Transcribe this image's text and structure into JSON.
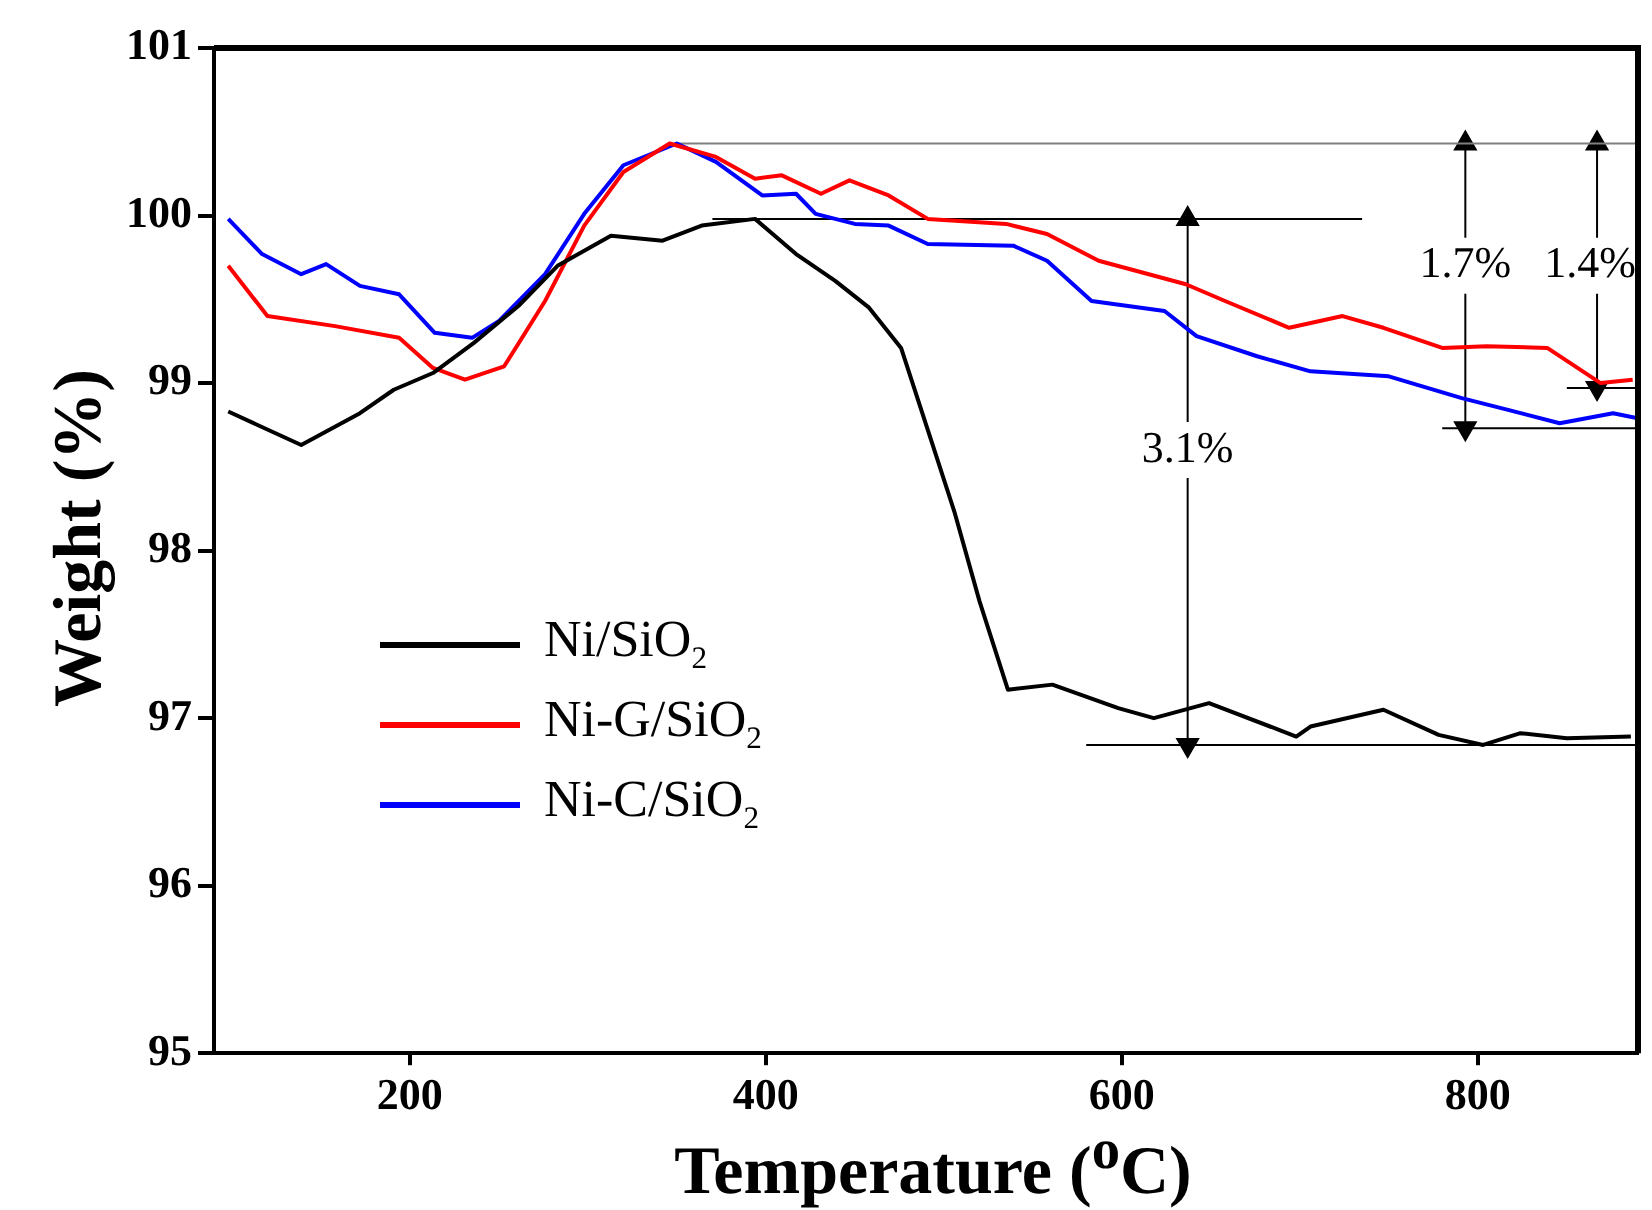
{
  "chart_data": {
    "type": "line",
    "xlabel": "Temperature ($^{o}$C)",
    "ylabel": "Weight (%)",
    "xlim": [
      90,
      890
    ],
    "xticks": [
      200,
      400,
      600,
      800
    ],
    "ylim": [
      95,
      101
    ],
    "yticks": [
      95,
      96,
      97,
      98,
      99,
      100,
      101
    ],
    "grid": false,
    "legend": "left",
    "line_style": "solid",
    "marker": "none",
    "series": [
      {
        "name": "Ni/SiO$_{2}$",
        "color": "#000000",
        "x": [
          98,
          139,
          172,
          191,
          213,
          236,
          261,
          283,
          313,
          342,
          364,
          394,
          417,
          439,
          458,
          476,
          491,
          506,
          520,
          536,
          561,
          598,
          618,
          649,
          698,
          706,
          747,
          778,
          803,
          824,
          850,
          886
        ],
        "values": [
          98.83,
          98.63,
          98.82,
          98.96,
          99.06,
          99.24,
          99.46,
          99.7,
          99.88,
          99.85,
          99.94,
          99.98,
          99.77,
          99.61,
          99.45,
          99.21,
          98.72,
          98.23,
          97.7,
          97.17,
          97.2,
          97.06,
          97.0,
          97.09,
          96.89,
          96.95,
          97.05,
          96.9,
          96.84,
          96.91,
          96.88,
          96.89
        ]
      },
      {
        "name": "Ni-G/SiO$_{2}$",
        "color": "#ff0000",
        "x": [
          98,
          120,
          158,
          194,
          213,
          231,
          253,
          276,
          298,
          320,
          346,
          372,
          394,
          409,
          431,
          447,
          469,
          491,
          535,
          558,
          587,
          636,
          658,
          694,
          724,
          747,
          780,
          805,
          839,
          869,
          887
        ],
        "values": [
          99.7,
          99.4,
          99.34,
          99.27,
          99.09,
          99.02,
          99.1,
          99.49,
          99.94,
          100.26,
          100.43,
          100.35,
          100.22,
          100.24,
          100.13,
          100.21,
          100.12,
          99.98,
          99.95,
          99.89,
          99.73,
          99.59,
          99.49,
          99.33,
          99.4,
          99.33,
          99.21,
          99.22,
          99.21,
          99.0,
          99.02
        ]
      },
      {
        "name": "Ni-C/SiO$_{2}$",
        "color": "#0000ff",
        "x": [
          98,
          117,
          139,
          153,
          172,
          194,
          214,
          235,
          250,
          276,
          298,
          320,
          350,
          372,
          398,
          417,
          428,
          450,
          469,
          491,
          539,
          558,
          583,
          624,
          642,
          676,
          706,
          750,
          791,
          817,
          846,
          876,
          890
        ],
        "values": [
          99.98,
          99.77,
          99.65,
          99.71,
          99.58,
          99.53,
          99.3,
          99.27,
          99.37,
          99.65,
          100.01,
          100.3,
          100.43,
          100.32,
          100.12,
          100.13,
          100.01,
          99.95,
          99.94,
          99.83,
          99.82,
          99.73,
          99.49,
          99.43,
          99.28,
          99.16,
          99.07,
          99.04,
          98.91,
          98.84,
          98.76,
          98.82,
          98.79
        ]
      },
      {
        "color": "#808080",
        "x": [
          350,
          890
        ],
        "values": [
          100.43,
          100.43
        ]
      },
      {
        "color": "#000000",
        "x": [
          370,
          735
        ],
        "values": [
          99.98,
          99.98
        ]
      },
      {
        "color": "#000000",
        "x": [
          580,
          890
        ],
        "values": [
          96.84,
          96.84
        ]
      },
      {
        "color": "#000000",
        "x": [
          780,
          890
        ],
        "values": [
          98.73,
          98.73
        ]
      },
      {
        "color": "#000000",
        "x": [
          850,
          890
        ],
        "values": [
          98.97,
          98.97
        ]
      },
      {
        "color": "#000000",
        "x": [
          637,
          637
        ],
        "values": [
          99.98,
          96.84
        ],
        "marker": "triangle"
      },
      {
        "color": "#000000",
        "x": [
          793,
          793
        ],
        "values": [
          100.43,
          98.73
        ],
        "marker": "triangle"
      },
      {
        "color": "#000000",
        "x": [
          867,
          867
        ],
        "values": [
          100.43,
          98.97
        ],
        "marker": "triangle"
      }
    ],
    "annotations": [
      {
        "text": "3.1%",
        "x": 637,
        "y": 98.6
      },
      {
        "text": "1.7%",
        "x": 793,
        "y": 99.7
      },
      {
        "text": "1.4%",
        "x": 863,
        "y": 99.7
      }
    ]
  }
}
